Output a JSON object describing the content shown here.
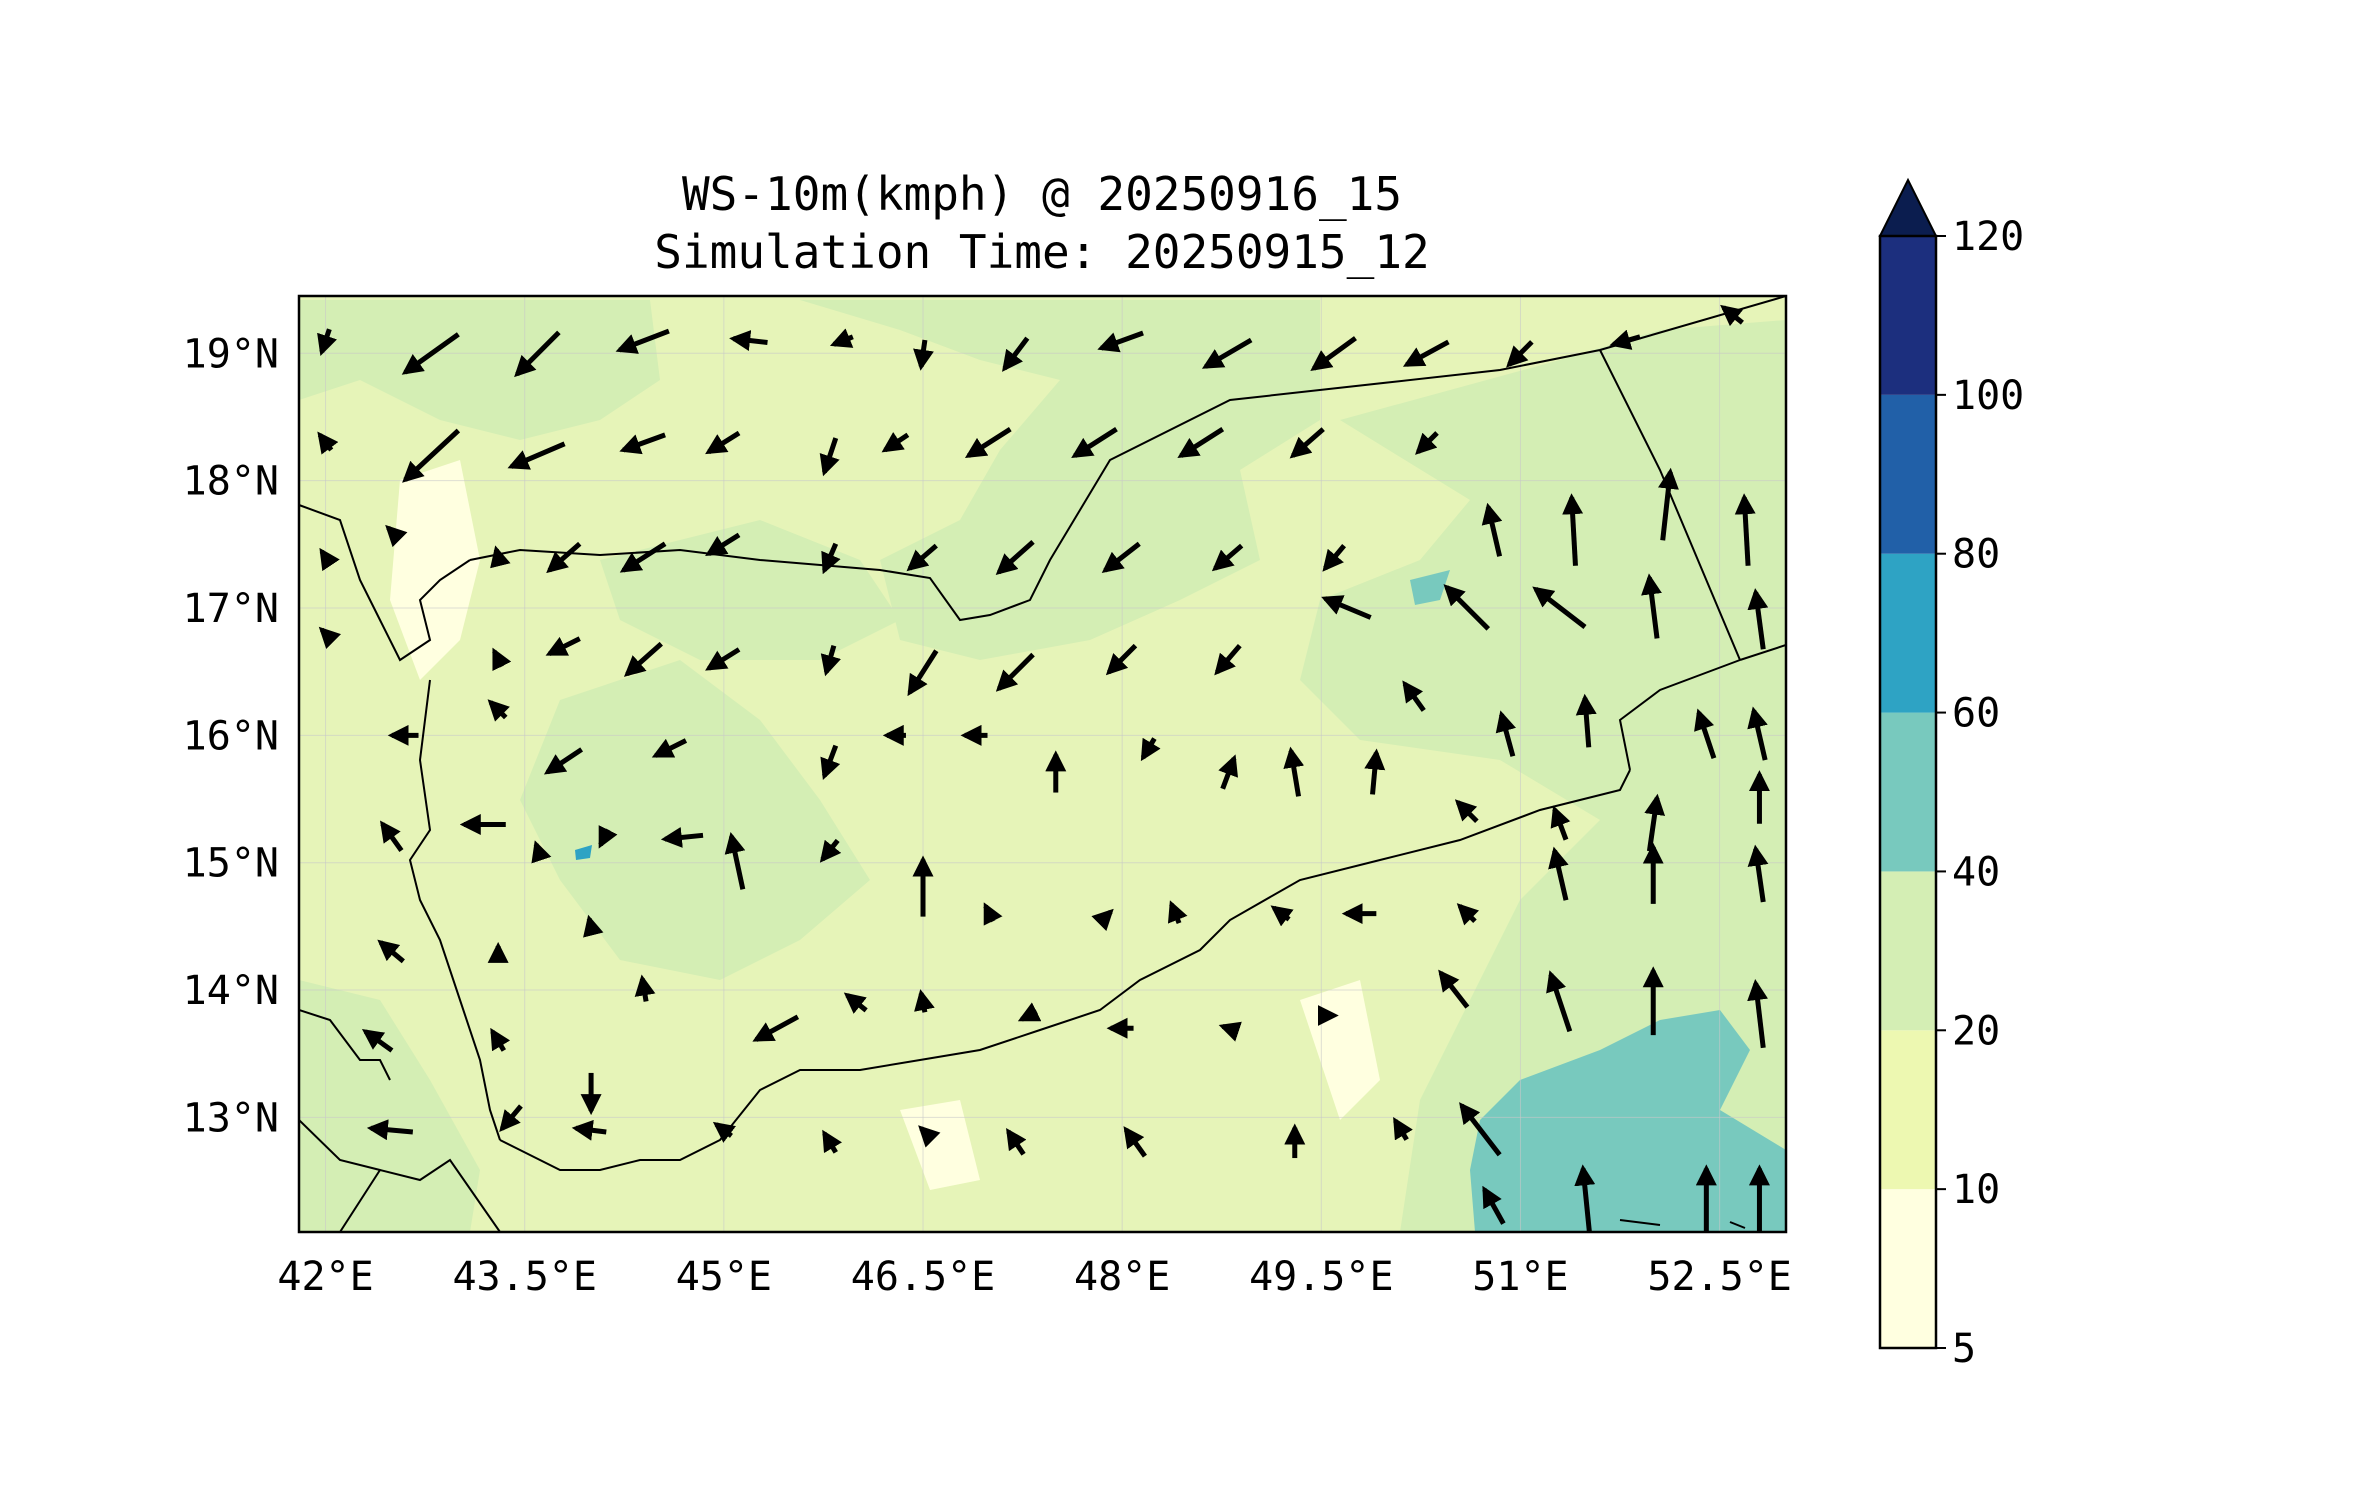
{
  "title": {
    "line1": "WS-10m(kmph) @ 20250916_15",
    "line2": "Simulation Time: 20250915_12"
  },
  "map": {
    "lon_range": [
      41.8,
      53.0
    ],
    "lat_range": [
      12.1,
      19.45
    ],
    "x_ticks": [
      "42°E",
      "43.5°E",
      "45°E",
      "46.5°E",
      "48°E",
      "49.5°E",
      "51°E",
      "52.5°E"
    ],
    "x_tick_values": [
      42,
      43.5,
      45,
      46.5,
      48,
      49.5,
      51,
      52.5
    ],
    "y_ticks": [
      "19°N",
      "18°N",
      "17°N",
      "16°N",
      "15°N",
      "14°N",
      "13°N"
    ],
    "y_tick_values": [
      19,
      18,
      17,
      16,
      15,
      14,
      13
    ],
    "background_color": "#e6f4b8"
  },
  "colorbar": {
    "levels": [
      5,
      10,
      20,
      40,
      60,
      80,
      100,
      120
    ],
    "labels": [
      "5",
      "10",
      "20",
      "40",
      "60",
      "80",
      "100",
      "120"
    ],
    "colors": [
      "#ffffe0",
      "#edf8b1",
      "#d4eeb4",
      "#78c9be",
      "#2ea3c4",
      "#2160a8",
      "#1c2f7e"
    ],
    "extend_color": "#0b1d4f",
    "extend": "max"
  },
  "wind_vectors": [
    [
      42.0,
      19.1,
      -4,
      12
    ],
    [
      42.8,
      19.0,
      -28,
      20
    ],
    [
      43.6,
      19.0,
      -22,
      22
    ],
    [
      44.4,
      19.1,
      -26,
      10
    ],
    [
      45.2,
      19.1,
      -18,
      -2
    ],
    [
      45.9,
      19.1,
      -10,
      4
    ],
    [
      46.5,
      19.0,
      -2,
      14
    ],
    [
      47.2,
      19.0,
      -12,
      16
    ],
    [
      48.0,
      19.1,
      -22,
      8
    ],
    [
      48.8,
      19.0,
      -24,
      14
    ],
    [
      49.6,
      19.0,
      -22,
      16
    ],
    [
      50.3,
      19.0,
      -22,
      12
    ],
    [
      51.0,
      19.0,
      -12,
      12
    ],
    [
      51.8,
      19.1,
      -14,
      4
    ],
    [
      52.6,
      19.3,
      -10,
      -8
    ],
    [
      42.0,
      18.3,
      -6,
      -8
    ],
    [
      42.8,
      18.2,
      -28,
      26
    ],
    [
      43.6,
      18.2,
      -28,
      12
    ],
    [
      44.4,
      18.3,
      -22,
      8
    ],
    [
      45.0,
      18.3,
      -16,
      10
    ],
    [
      45.8,
      18.2,
      -6,
      18
    ],
    [
      46.3,
      18.3,
      -12,
      8
    ],
    [
      47.0,
      18.3,
      -22,
      14
    ],
    [
      47.8,
      18.3,
      -22,
      14
    ],
    [
      48.6,
      18.3,
      -22,
      14
    ],
    [
      49.4,
      18.3,
      -16,
      14
    ],
    [
      50.3,
      18.3,
      -10,
      10
    ],
    [
      50.8,
      17.6,
      -6,
      -26
    ],
    [
      51.4,
      17.6,
      -2,
      -36
    ],
    [
      52.1,
      17.8,
      4,
      -36
    ],
    [
      52.7,
      17.6,
      -2,
      -36
    ],
    [
      42.0,
      17.4,
      -4,
      -6
    ],
    [
      42.5,
      17.6,
      -4,
      -4
    ],
    [
      43.3,
      17.4,
      -2,
      -8
    ],
    [
      43.8,
      17.4,
      -16,
      14
    ],
    [
      44.4,
      17.4,
      -22,
      14
    ],
    [
      45.0,
      17.5,
      -16,
      10
    ],
    [
      45.8,
      17.4,
      -6,
      14
    ],
    [
      46.5,
      17.4,
      -14,
      12
    ],
    [
      47.2,
      17.4,
      -18,
      16
    ],
    [
      48.0,
      17.4,
      -18,
      14
    ],
    [
      48.8,
      17.4,
      -14,
      12
    ],
    [
      49.6,
      17.4,
      -10,
      12
    ],
    [
      50.6,
      17.0,
      -22,
      -22
    ],
    [
      51.3,
      17.0,
      -26,
      -20
    ],
    [
      52.0,
      17.0,
      -4,
      -32
    ],
    [
      52.8,
      16.9,
      -4,
      -30
    ],
    [
      42.0,
      16.8,
      -4,
      -4
    ],
    [
      43.3,
      16.6,
      -4,
      -8
    ],
    [
      43.8,
      16.7,
      -16,
      8
    ],
    [
      44.4,
      16.6,
      -18,
      16
    ],
    [
      45.0,
      16.6,
      -16,
      10
    ],
    [
      45.8,
      16.6,
      -4,
      14
    ],
    [
      46.5,
      16.5,
      -14,
      22
    ],
    [
      47.2,
      16.5,
      -18,
      18
    ],
    [
      48.0,
      16.6,
      -14,
      14
    ],
    [
      48.8,
      16.6,
      -12,
      14
    ],
    [
      49.7,
      17.0,
      -24,
      -10
    ],
    [
      50.2,
      16.3,
      -10,
      -14
    ],
    [
      50.9,
      16.0,
      -6,
      -22
    ],
    [
      51.5,
      16.1,
      -2,
      -26
    ],
    [
      52.4,
      16.0,
      -8,
      -24
    ],
    [
      52.8,
      16.0,
      -6,
      -26
    ],
    [
      42.6,
      16.0,
      -14,
      0
    ],
    [
      43.3,
      16.2,
      -8,
      -8
    ],
    [
      43.8,
      15.8,
      -18,
      12
    ],
    [
      44.6,
      15.9,
      -16,
      8
    ],
    [
      45.8,
      15.8,
      -6,
      16
    ],
    [
      46.3,
      16.0,
      -10,
      0
    ],
    [
      46.9,
      16.0,
      -12,
      0
    ],
    [
      47.5,
      15.7,
      0,
      -20
    ],
    [
      48.2,
      15.9,
      -6,
      10
    ],
    [
      48.8,
      15.7,
      6,
      -16
    ],
    [
      49.3,
      15.7,
      -4,
      -24
    ],
    [
      49.9,
      15.7,
      2,
      -22
    ],
    [
      50.6,
      15.4,
      -10,
      -10
    ],
    [
      51.3,
      15.3,
      -6,
      -16
    ],
    [
      52.0,
      15.3,
      4,
      -28
    ],
    [
      52.8,
      15.5,
      0,
      -26
    ],
    [
      42.5,
      15.2,
      -10,
      -14
    ],
    [
      43.2,
      15.3,
      -22,
      0
    ],
    [
      43.6,
      15.1,
      -2,
      -6
    ],
    [
      44.1,
      15.2,
      -4,
      8
    ],
    [
      44.7,
      15.2,
      -20,
      2
    ],
    [
      45.1,
      15.0,
      -6,
      -28
    ],
    [
      45.8,
      15.1,
      -8,
      10
    ],
    [
      46.5,
      14.8,
      0,
      -30
    ],
    [
      47.0,
      14.6,
      -4,
      -8
    ],
    [
      47.9,
      14.6,
      2,
      -2
    ],
    [
      48.4,
      14.6,
      -4,
      -10
    ],
    [
      49.2,
      14.6,
      -8,
      -6
    ],
    [
      49.8,
      14.6,
      -16,
      0
    ],
    [
      50.6,
      14.6,
      -8,
      -8
    ],
    [
      51.3,
      14.9,
      -6,
      -26
    ],
    [
      52.0,
      14.9,
      0,
      -30
    ],
    [
      52.8,
      14.9,
      -4,
      -28
    ],
    [
      42.5,
      14.3,
      -12,
      -10
    ],
    [
      43.3,
      14.3,
      0,
      -6
    ],
    [
      44.0,
      14.5,
      -2,
      -8
    ],
    [
      44.4,
      14.0,
      -2,
      -12
    ],
    [
      45.4,
      13.7,
      -22,
      12
    ],
    [
      46.0,
      13.9,
      -10,
      -8
    ],
    [
      46.5,
      13.9,
      -2,
      -10
    ],
    [
      47.3,
      13.8,
      -8,
      4
    ],
    [
      48.0,
      13.7,
      -12,
      0
    ],
    [
      48.8,
      13.7,
      -6,
      -2
    ],
    [
      49.6,
      13.8,
      0,
      0
    ],
    [
      50.5,
      14.0,
      -14,
      -18
    ],
    [
      51.3,
      13.9,
      -10,
      -30
    ],
    [
      52.0,
      13.9,
      0,
      -34
    ],
    [
      52.8,
      13.8,
      -4,
      -34
    ],
    [
      42.4,
      13.6,
      -14,
      -10
    ],
    [
      43.3,
      13.6,
      -6,
      -10
    ],
    [
      44.0,
      13.2,
      0,
      20
    ],
    [
      43.4,
      13.0,
      -10,
      12
    ],
    [
      42.5,
      12.9,
      -22,
      -2
    ],
    [
      44.0,
      12.9,
      -16,
      -2
    ],
    [
      45.0,
      12.9,
      -8,
      -6
    ],
    [
      45.8,
      12.8,
      -6,
      -10
    ],
    [
      46.5,
      12.9,
      -2,
      -2
    ],
    [
      47.2,
      12.8,
      -8,
      -12
    ],
    [
      48.1,
      12.8,
      -10,
      -14
    ],
    [
      49.3,
      12.8,
      0,
      -16
    ],
    [
      50.1,
      12.9,
      -6,
      -10
    ],
    [
      50.7,
      12.9,
      -20,
      -26
    ],
    [
      50.8,
      12.3,
      -10,
      -18
    ],
    [
      51.5,
      12.3,
      -4,
      -40
    ],
    [
      52.4,
      12.3,
      0,
      -40
    ],
    [
      52.8,
      12.3,
      0,
      -40
    ]
  ]
}
